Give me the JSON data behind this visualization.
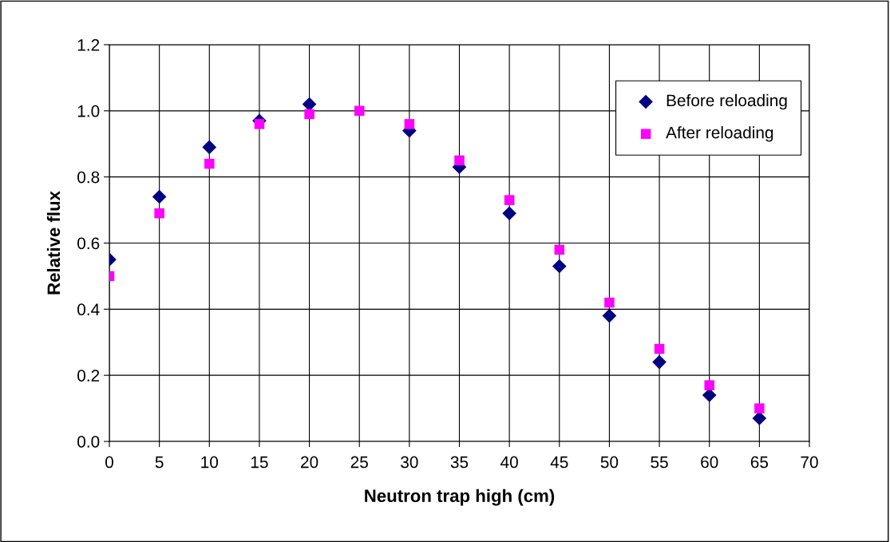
{
  "chart_data": {
    "type": "scatter",
    "xlabel": "Neutron trap high (cm)",
    "ylabel": "Relative flux",
    "x": [
      0,
      5,
      10,
      15,
      20,
      25,
      30,
      35,
      40,
      45,
      50,
      55,
      60,
      65
    ],
    "series": [
      {
        "name": "Before reloading",
        "color": "#000080",
        "marker": "diamond",
        "values": [
          0.55,
          0.74,
          0.89,
          0.97,
          1.02,
          null,
          0.94,
          0.83,
          0.69,
          0.53,
          0.38,
          0.24,
          0.14,
          0.07
        ]
      },
      {
        "name": "After reloading",
        "color": "#ff00ff",
        "marker": "square",
        "values": [
          0.5,
          0.69,
          0.84,
          0.96,
          0.99,
          1.0,
          0.96,
          0.85,
          0.73,
          0.58,
          0.42,
          0.28,
          0.17,
          0.1
        ]
      }
    ],
    "xlim": [
      0,
      70
    ],
    "xticks": [
      0,
      5,
      10,
      15,
      20,
      25,
      30,
      35,
      40,
      45,
      50,
      55,
      60,
      65,
      70
    ],
    "ylim": [
      0,
      1.2
    ],
    "yticks": [
      {
        "value": 0,
        "label": "0.0"
      },
      {
        "value": 0.2,
        "label": "0.2"
      },
      {
        "value": 0.4,
        "label": "0.4"
      },
      {
        "value": 0.6,
        "label": "0.6"
      },
      {
        "value": 0.8,
        "label": "0.8"
      },
      {
        "value": 1.0,
        "label": "1.0"
      },
      {
        "value": 1.2,
        "label": "1.2"
      }
    ],
    "grid": true,
    "legend": "top right"
  }
}
